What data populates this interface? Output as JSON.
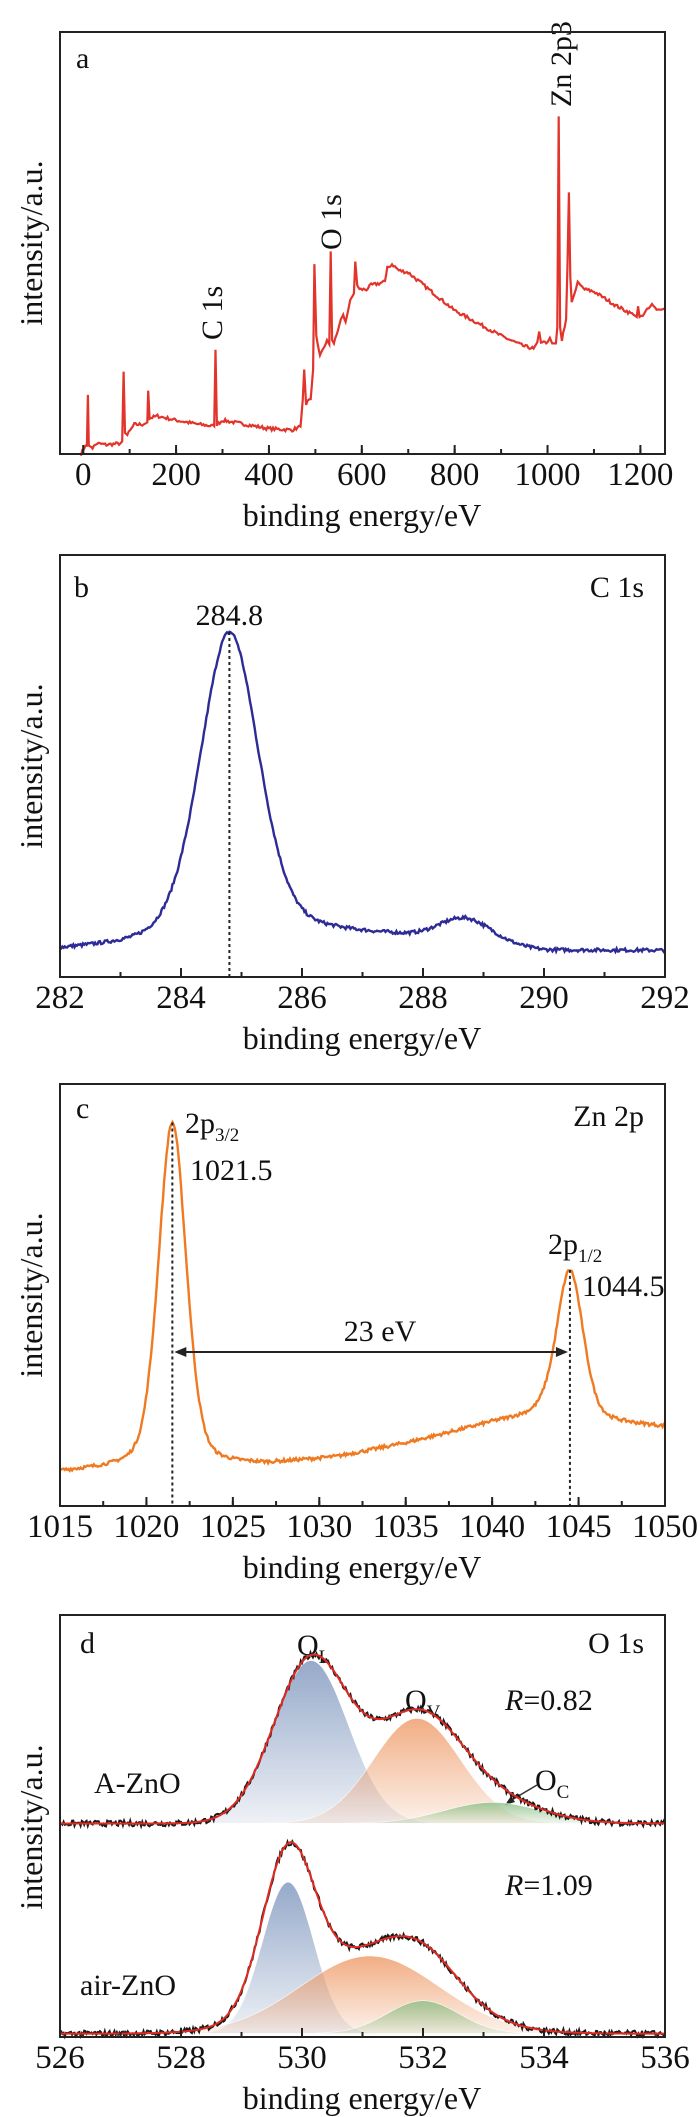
{
  "chart_data": [
    {
      "type": "line",
      "panel_label": "a",
      "xlabel": "binding energy/eV",
      "ylabel": "intensity/a.u.",
      "xlim": [
        -50,
        1253
      ],
      "ylim": [
        0,
        1
      ],
      "xticks": [
        0,
        200,
        400,
        600,
        800,
        1000,
        1200
      ],
      "xticklabels": [
        "0",
        "200",
        "400",
        "600",
        "800",
        "1000",
        "1200"
      ],
      "minor_step": 100,
      "color": "#e3342b",
      "annotations": [
        {
          "text": "C 1s",
          "x": 285
        },
        {
          "text": "O 1s",
          "x": 533
        },
        {
          "text": "Zn 2p3",
          "x": 1024
        }
      ],
      "points": [
        [
          -5,
          0
        ],
        [
          5,
          0.02
        ],
        [
          8,
          0.02
        ],
        [
          10,
          0.14
        ],
        [
          12,
          0.02
        ],
        [
          20,
          0.015
        ],
        [
          30,
          0.025
        ],
        [
          50,
          0.022
        ],
        [
          80,
          0.025
        ],
        [
          84,
          0.03
        ],
        [
          87,
          0.195
        ],
        [
          90,
          0.05
        ],
        [
          95,
          0.045
        ],
        [
          110,
          0.07
        ],
        [
          130,
          0.07
        ],
        [
          138,
          0.075
        ],
        [
          140,
          0.15
        ],
        [
          143,
          0.085
        ],
        [
          160,
          0.09
        ],
        [
          200,
          0.08
        ],
        [
          250,
          0.07
        ],
        [
          282,
          0.066
        ],
        [
          285,
          0.247
        ],
        [
          288,
          0.07
        ],
        [
          300,
          0.08
        ],
        [
          350,
          0.07
        ],
        [
          400,
          0.06
        ],
        [
          450,
          0.057
        ],
        [
          468,
          0.065
        ],
        [
          473,
          0.13
        ],
        [
          476,
          0.2
        ],
        [
          480,
          0.12
        ],
        [
          490,
          0.13
        ],
        [
          495,
          0.2
        ],
        [
          498,
          0.45
        ],
        [
          502,
          0.28
        ],
        [
          510,
          0.23
        ],
        [
          525,
          0.27
        ],
        [
          530,
          0.26
        ],
        [
          533,
          0.48
        ],
        [
          536,
          0.27
        ],
        [
          540,
          0.26
        ],
        [
          555,
          0.32
        ],
        [
          560,
          0.33
        ],
        [
          565,
          0.31
        ],
        [
          575,
          0.365
        ],
        [
          583,
          0.38
        ],
        [
          586,
          0.456
        ],
        [
          590,
          0.4
        ],
        [
          595,
          0.39
        ],
        [
          610,
          0.39
        ],
        [
          620,
          0.4
        ],
        [
          640,
          0.405
        ],
        [
          650,
          0.41
        ],
        [
          655,
          0.44
        ],
        [
          665,
          0.45
        ],
        [
          680,
          0.435
        ],
        [
          700,
          0.43
        ],
        [
          750,
          0.385
        ],
        [
          800,
          0.34
        ],
        [
          850,
          0.31
        ],
        [
          900,
          0.28
        ],
        [
          950,
          0.255
        ],
        [
          970,
          0.25
        ],
        [
          978,
          0.265
        ],
        [
          982,
          0.29
        ],
        [
          986,
          0.262
        ],
        [
          1000,
          0.265
        ],
        [
          1005,
          0.275
        ],
        [
          1010,
          0.262
        ],
        [
          1018,
          0.262
        ],
        [
          1021,
          0.3
        ],
        [
          1024,
          0.8
        ],
        [
          1027,
          0.3
        ],
        [
          1031,
          0.27
        ],
        [
          1040,
          0.32
        ],
        [
          1043,
          0.45
        ],
        [
          1046,
          0.62
        ],
        [
          1049,
          0.42
        ],
        [
          1052,
          0.36
        ],
        [
          1058,
          0.38
        ],
        [
          1065,
          0.405
        ],
        [
          1080,
          0.39
        ],
        [
          1100,
          0.385
        ],
        [
          1150,
          0.35
        ],
        [
          1185,
          0.33
        ],
        [
          1192,
          0.325
        ],
        [
          1195,
          0.35
        ],
        [
          1198,
          0.325
        ],
        [
          1205,
          0.33
        ],
        [
          1218,
          0.345
        ],
        [
          1225,
          0.355
        ],
        [
          1235,
          0.34
        ],
        [
          1245,
          0.342
        ],
        [
          1253,
          0.345
        ]
      ]
    },
    {
      "type": "line",
      "panel_label": "b",
      "title": "C 1s",
      "xlabel": "binding energy/eV",
      "ylabel": "intensity/a.u.",
      "xlim": [
        282,
        292
      ],
      "ylim": [
        0,
        1
      ],
      "xticks": [
        282,
        284,
        286,
        288,
        290,
        292
      ],
      "xticklabels": [
        "282",
        "284",
        "286",
        "288",
        "290",
        "292"
      ],
      "minor_step": 1,
      "color": "#2d2b96",
      "peak_label": "284.8",
      "peak_x": 284.8,
      "background": [
        [
          282,
          0.062
        ],
        [
          283.5,
          0.072
        ],
        [
          285,
          0.09
        ],
        [
          286.5,
          0.1
        ],
        [
          287.5,
          0.096
        ],
        [
          289.5,
          0.07
        ],
        [
          290,
          0.062
        ],
        [
          292,
          0.062
        ]
      ],
      "peaks": [
        {
          "center": 284.8,
          "height": 0.73,
          "fwhm": 1.15,
          "eta": 0.3
        },
        {
          "center": 288.7,
          "height": 0.055,
          "fwhm": 1.0,
          "eta": 0
        }
      ]
    },
    {
      "type": "line",
      "panel_label": "c",
      "title": "Zn 2p",
      "xlabel": "binding energy/eV",
      "ylabel": "intensity/a.u.",
      "xlim": [
        1015,
        1050
      ],
      "ylim": [
        0,
        1
      ],
      "xticks": [
        1015,
        1020,
        1025,
        1030,
        1035,
        1040,
        1045,
        1050
      ],
      "xticklabels": [
        "1015",
        "1020",
        "1025",
        "1030",
        "1035",
        "1040",
        "1045",
        "1050"
      ],
      "minor_step": 2.5,
      "color": "#f07a22",
      "background": [
        [
          1015,
          0.08
        ],
        [
          1019,
          0.09
        ],
        [
          1024,
          0.095
        ],
        [
          1027,
          0.098
        ],
        [
          1031,
          0.115
        ],
        [
          1035,
          0.148
        ],
        [
          1040,
          0.197
        ],
        [
          1043,
          0.218
        ],
        [
          1046,
          0.2
        ],
        [
          1050,
          0.187
        ]
      ],
      "peaks": [
        {
          "center": 1021.5,
          "height": 0.816,
          "fwhm": 1.9,
          "eta": 0.3,
          "label_main": "2p",
          "label_sub": "3/2",
          "value_label": "1021.5"
        },
        {
          "center": 1044.5,
          "height": 0.35,
          "fwhm": 1.8,
          "eta": 0.3,
          "label_main": "2p",
          "label_sub": "1/2",
          "value_label": "1044.5"
        }
      ],
      "splitting_label": "23 eV"
    },
    {
      "type": "area",
      "panel_label": "d",
      "title": "O 1s",
      "xlabel": "binding energy/eV",
      "ylabel": "intensity/a.u.",
      "xlim": [
        526,
        536
      ],
      "ylim": [
        0,
        1
      ],
      "xticks": [
        526,
        528,
        530,
        532,
        534,
        536
      ],
      "xticklabels": [
        "526",
        "528",
        "530",
        "532",
        "534",
        "536"
      ],
      "minor_step": 1,
      "data_color": "#1a1a1a",
      "fit_color": "#e02a22",
      "component_labels": {
        "O_L": {
          "main": "O",
          "sub": "L"
        },
        "O_V": {
          "main": "O",
          "sub": "V"
        },
        "O_C": {
          "main": "O",
          "sub": "C"
        }
      },
      "series": [
        {
          "name": "A-ZnO",
          "R_symbol": "R",
          "R_value": "=0.82",
          "offset": 0.506,
          "components": [
            {
              "name": "O_L",
              "center": 530.15,
              "height": 0.386,
              "fwhm": 1.45,
              "color": "#7d95bd"
            },
            {
              "name": "O_V",
              "center": 531.9,
              "height": 0.249,
              "fwhm": 1.7,
              "color": "#ee9a66"
            },
            {
              "name": "O_C",
              "center": 533.15,
              "height": 0.05,
              "fwhm": 1.9,
              "color": "#8cbf86"
            }
          ]
        },
        {
          "name": "air-ZnO",
          "R_symbol": "R",
          "R_value": "=1.09",
          "offset": 0.008,
          "components": [
            {
              "name": "O_L",
              "center": 529.77,
              "height": 0.359,
              "fwhm": 1.0,
              "color": "#7d95bd"
            },
            {
              "name": "O_V",
              "center": 531.12,
              "height": 0.184,
              "fwhm": 2.7,
              "color": "#ee9a66"
            },
            {
              "name": "O_C",
              "center": 532.0,
              "height": 0.078,
              "fwhm": 1.4,
              "color": "#8cbf86"
            }
          ]
        }
      ]
    }
  ]
}
